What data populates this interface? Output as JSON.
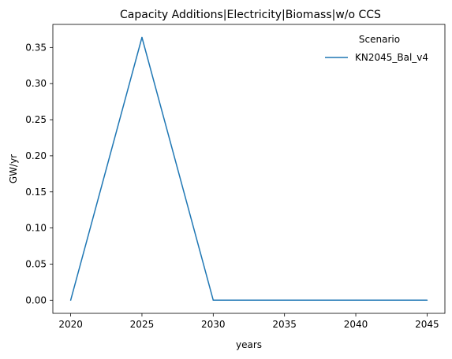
{
  "chart_data": {
    "type": "line",
    "title": "Capacity Additions|Electricity|Biomass|w/o CCS",
    "xlabel": "years",
    "ylabel": "GW/yr",
    "xlim": [
      2018.75,
      2046.25
    ],
    "ylim": [
      -0.0182,
      0.382
    ],
    "x_ticks": [
      "2020",
      "2025",
      "2030",
      "2035",
      "2040",
      "2045"
    ],
    "y_ticks": [
      "0.00",
      "0.05",
      "0.10",
      "0.15",
      "0.20",
      "0.25",
      "0.30",
      "0.35"
    ],
    "legend": {
      "title": "Scenario",
      "position": "top-right"
    },
    "grid": false,
    "series": [
      {
        "name": "KN2045_Bal_v4",
        "color": "#1f77b4",
        "x": [
          2020,
          2025,
          2030,
          2035,
          2040,
          2045
        ],
        "y": [
          0.0,
          0.364,
          0.0,
          0.0,
          0.0,
          0.0
        ]
      }
    ]
  }
}
